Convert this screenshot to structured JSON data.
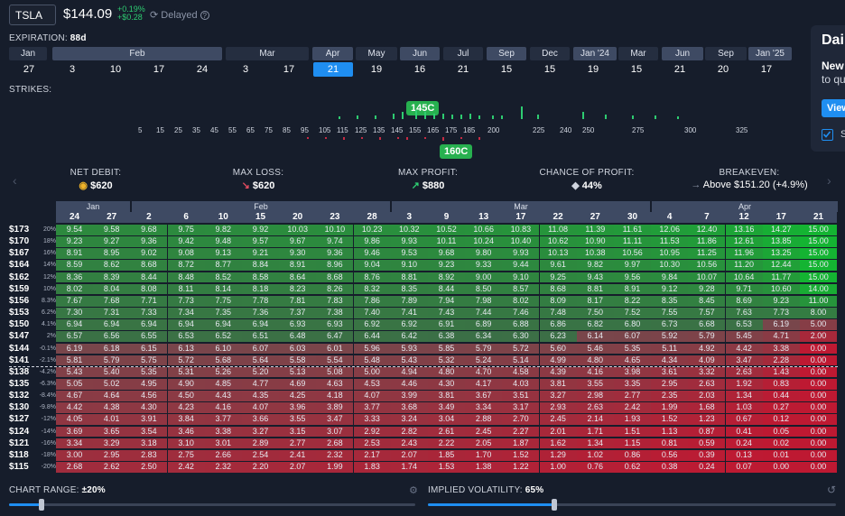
{
  "header": {
    "ticker": "TSLA",
    "price": "$144.09",
    "change_pct": "+0.19%",
    "change_abs": "+$0.28",
    "delayed": "Delayed"
  },
  "expiration": {
    "label": "EXPIRATION:",
    "value": "88d"
  },
  "expiry_months": [
    "Jan",
    "Feb",
    "Mar",
    "Apr",
    "May",
    "Jun",
    "Jul",
    "Sep",
    "Dec",
    "Jan '24",
    "Mar",
    "Jun",
    "Sep",
    "Jan '25"
  ],
  "expiry_days": [
    "27",
    "3",
    "10",
    "17",
    "24",
    "3",
    "17",
    "21",
    "19",
    "16",
    "21",
    "15",
    "15",
    "19",
    "15",
    "21",
    "20",
    "17"
  ],
  "strikes": {
    "label": "STRIKES:",
    "ticks": [
      "5",
      "15",
      "25",
      "35",
      "45",
      "55",
      "65",
      "75",
      "85",
      "95",
      "105",
      "115",
      "125",
      "135",
      "145",
      "155",
      "165",
      "175",
      "185",
      "200",
      "225",
      "240",
      "250",
      "275",
      "300",
      "325"
    ],
    "long_pill": "145C",
    "short_pill": "160C"
  },
  "stats": {
    "net_debit_label": "NET DEBIT:",
    "net_debit": "$620",
    "max_loss_label": "MAX LOSS:",
    "max_loss": "$620",
    "max_profit_label": "MAX PROFIT:",
    "max_profit": "$880",
    "chance_label": "CHANCE OF PROFIT:",
    "chance": "44%",
    "breakeven_label": "BREAKEVEN:",
    "breakeven": "Above $151.20 (+4.9%)"
  },
  "grid": {
    "months": [
      "Jan",
      "Feb",
      "Mar",
      "Apr"
    ],
    "days": [
      "24",
      "27",
      "2",
      "6",
      "10",
      "15",
      "20",
      "23",
      "28",
      "3",
      "9",
      "13",
      "17",
      "22",
      "27",
      "30",
      "4",
      "7",
      "12",
      "17",
      "21"
    ],
    "rows": [
      {
        "strike": "$173",
        "pct": "20%",
        "v": [
          "9.54",
          "9.58",
          "9.68",
          "9.75",
          "9.82",
          "9.92",
          "10.03",
          "10.10",
          "10.23",
          "10.32",
          "10.52",
          "10.66",
          "10.83",
          "11.08",
          "11.39",
          "11.61",
          "12.06",
          "12.40",
          "13.16",
          "14.27",
          "15.00"
        ]
      },
      {
        "strike": "$170",
        "pct": "18%",
        "v": [
          "9.23",
          "9.27",
          "9.36",
          "9.42",
          "9.48",
          "9.57",
          "9.67",
          "9.74",
          "9.86",
          "9.93",
          "10.11",
          "10.24",
          "10.40",
          "10.62",
          "10.90",
          "11.11",
          "11.53",
          "11.86",
          "12.61",
          "13.85",
          "15.00"
        ]
      },
      {
        "strike": "$167",
        "pct": "16%",
        "v": [
          "8.91",
          "8.95",
          "9.02",
          "9.08",
          "9.13",
          "9.21",
          "9.30",
          "9.36",
          "9.46",
          "9.53",
          "9.68",
          "9.80",
          "9.93",
          "10.13",
          "10.38",
          "10.56",
          "10.95",
          "11.25",
          "11.96",
          "13.25",
          "15.00"
        ]
      },
      {
        "strike": "$164",
        "pct": "14%",
        "v": [
          "8.59",
          "8.62",
          "8.68",
          "8.72",
          "8.77",
          "8.84",
          "8.91",
          "8.96",
          "9.04",
          "9.10",
          "9.23",
          "9.33",
          "9.44",
          "9.61",
          "9.82",
          "9.97",
          "10.30",
          "10.56",
          "11.20",
          "12.44",
          "15.00"
        ]
      },
      {
        "strike": "$162",
        "pct": "12%",
        "v": [
          "8.36",
          "8.39",
          "8.44",
          "8.48",
          "8.52",
          "8.58",
          "8.64",
          "8.68",
          "8.76",
          "8.81",
          "8.92",
          "9.00",
          "9.10",
          "9.25",
          "9.43",
          "9.56",
          "9.84",
          "10.07",
          "10.64",
          "11.77",
          "15.00"
        ]
      },
      {
        "strike": "$159",
        "pct": "10%",
        "v": [
          "8.02",
          "8.04",
          "8.08",
          "8.11",
          "8.14",
          "8.18",
          "8.23",
          "8.26",
          "8.32",
          "8.35",
          "8.44",
          "8.50",
          "8.57",
          "8.68",
          "8.81",
          "8.91",
          "9.12",
          "9.28",
          "9.71",
          "10.60",
          "14.00"
        ]
      },
      {
        "strike": "$156",
        "pct": "8.3%",
        "v": [
          "7.67",
          "7.68",
          "7.71",
          "7.73",
          "7.75",
          "7.78",
          "7.81",
          "7.83",
          "7.86",
          "7.89",
          "7.94",
          "7.98",
          "8.02",
          "8.09",
          "8.17",
          "8.22",
          "8.35",
          "8.45",
          "8.69",
          "9.23",
          "11.00"
        ]
      },
      {
        "strike": "$153",
        "pct": "6.2%",
        "v": [
          "7.30",
          "7.31",
          "7.33",
          "7.34",
          "7.35",
          "7.36",
          "7.37",
          "7.38",
          "7.40",
          "7.41",
          "7.43",
          "7.44",
          "7.46",
          "7.48",
          "7.50",
          "7.52",
          "7.55",
          "7.57",
          "7.63",
          "7.73",
          "8.00"
        ]
      },
      {
        "strike": "$150",
        "pct": "4.1%",
        "v": [
          "6.94",
          "6.94",
          "6.94",
          "6.94",
          "6.94",
          "6.94",
          "6.93",
          "6.93",
          "6.92",
          "6.92",
          "6.91",
          "6.89",
          "6.88",
          "6.86",
          "6.82",
          "6.80",
          "6.73",
          "6.68",
          "6.53",
          "6.19",
          "5.00"
        ]
      },
      {
        "strike": "$147",
        "pct": "2%",
        "v": [
          "6.57",
          "6.56",
          "6.55",
          "6.53",
          "6.52",
          "6.51",
          "6.48",
          "6.47",
          "6.44",
          "6.42",
          "6.38",
          "6.34",
          "6.30",
          "6.23",
          "6.14",
          "6.07",
          "5.92",
          "5.79",
          "5.45",
          "4.71",
          "2.00"
        ]
      },
      {
        "strike": "$144",
        "pct": "-0.1%",
        "v": [
          "6.19",
          "6.18",
          "6.15",
          "6.13",
          "6.10",
          "6.07",
          "6.03",
          "6.01",
          "5.96",
          "5.93",
          "5.85",
          "5.79",
          "5.72",
          "5.60",
          "5.46",
          "5.35",
          "5.11",
          "4.92",
          "4.42",
          "3.38",
          "0.00"
        ]
      },
      {
        "strike": "$141",
        "pct": "-2.1%",
        "v": [
          "5.81",
          "5.79",
          "5.75",
          "5.72",
          "5.68",
          "5.64",
          "5.58",
          "5.54",
          "5.48",
          "5.43",
          "5.32",
          "5.24",
          "5.14",
          "4.99",
          "4.80",
          "4.65",
          "4.34",
          "4.09",
          "3.47",
          "2.28",
          "0.00"
        ]
      },
      {
        "strike": "$138",
        "pct": "-4.2%",
        "v": [
          "5.43",
          "5.40",
          "5.35",
          "5.31",
          "5.26",
          "5.20",
          "5.13",
          "5.08",
          "5.00",
          "4.94",
          "4.80",
          "4.70",
          "4.58",
          "4.39",
          "4.16",
          "3.98",
          "3.61",
          "3.32",
          "2.63",
          "1.43",
          "0.00"
        ]
      },
      {
        "strike": "$135",
        "pct": "-6.3%",
        "v": [
          "5.05",
          "5.02",
          "4.95",
          "4.90",
          "4.85",
          "4.77",
          "4.69",
          "4.63",
          "4.53",
          "4.46",
          "4.30",
          "4.17",
          "4.03",
          "3.81",
          "3.55",
          "3.35",
          "2.95",
          "2.63",
          "1.92",
          "0.83",
          "0.00"
        ]
      },
      {
        "strike": "$132",
        "pct": "-8.4%",
        "v": [
          "4.67",
          "4.64",
          "4.56",
          "4.50",
          "4.43",
          "4.35",
          "4.25",
          "4.18",
          "4.07",
          "3.99",
          "3.81",
          "3.67",
          "3.51",
          "3.27",
          "2.98",
          "2.77",
          "2.35",
          "2.03",
          "1.34",
          "0.44",
          "0.00"
        ]
      },
      {
        "strike": "$130",
        "pct": "-9.8%",
        "v": [
          "4.42",
          "4.38",
          "4.30",
          "4.23",
          "4.16",
          "4.07",
          "3.96",
          "3.89",
          "3.77",
          "3.68",
          "3.49",
          "3.34",
          "3.17",
          "2.93",
          "2.63",
          "2.42",
          "1.99",
          "1.68",
          "1.03",
          "0.27",
          "0.00"
        ]
      },
      {
        "strike": "$127",
        "pct": "-12%",
        "v": [
          "4.05",
          "4.01",
          "3.91",
          "3.84",
          "3.77",
          "3.66",
          "3.55",
          "3.47",
          "3.33",
          "3.24",
          "3.04",
          "2.88",
          "2.70",
          "2.45",
          "2.14",
          "1.93",
          "1.52",
          "1.23",
          "0.67",
          "0.12",
          "0.00"
        ]
      },
      {
        "strike": "$124",
        "pct": "-14%",
        "v": [
          "3.69",
          "3.65",
          "3.54",
          "3.46",
          "3.38",
          "3.27",
          "3.15",
          "3.07",
          "2.92",
          "2.82",
          "2.61",
          "2.45",
          "2.27",
          "2.01",
          "1.71",
          "1.51",
          "1.13",
          "0.87",
          "0.41",
          "0.05",
          "0.00"
        ]
      },
      {
        "strike": "$121",
        "pct": "-16%",
        "v": [
          "3.34",
          "3.29",
          "3.18",
          "3.10",
          "3.01",
          "2.89",
          "2.77",
          "2.68",
          "2.53",
          "2.43",
          "2.22",
          "2.05",
          "1.87",
          "1.62",
          "1.34",
          "1.15",
          "0.81",
          "0.59",
          "0.24",
          "0.02",
          "0.00"
        ]
      },
      {
        "strike": "$118",
        "pct": "-18%",
        "v": [
          "3.00",
          "2.95",
          "2.83",
          "2.75",
          "2.66",
          "2.54",
          "2.41",
          "2.32",
          "2.17",
          "2.07",
          "1.85",
          "1.70",
          "1.52",
          "1.29",
          "1.02",
          "0.86",
          "0.56",
          "0.39",
          "0.13",
          "0.01",
          "0.00"
        ]
      },
      {
        "strike": "$115",
        "pct": "-20%",
        "v": [
          "2.68",
          "2.62",
          "2.50",
          "2.42",
          "2.32",
          "2.20",
          "2.07",
          "1.99",
          "1.83",
          "1.74",
          "1.53",
          "1.38",
          "1.22",
          "1.00",
          "0.76",
          "0.62",
          "0.38",
          "0.24",
          "0.07",
          "0.00",
          "0.00"
        ]
      }
    ]
  },
  "footer": {
    "chart_range_label": "CHART RANGE:",
    "chart_range": "±20%",
    "iv_label": "IMPLIED VOLATILITY:",
    "iv": "65%",
    "chart_range_fraction": 0.08,
    "iv_fraction": 0.31
  },
  "popup": {
    "title": "Dai",
    "line1": "New",
    "line2": "to qu",
    "button": "View",
    "check_label": "S"
  },
  "colors": {
    "accent": "#1f8ef1",
    "profit": "#27b04f",
    "loss": "#c62b43"
  }
}
